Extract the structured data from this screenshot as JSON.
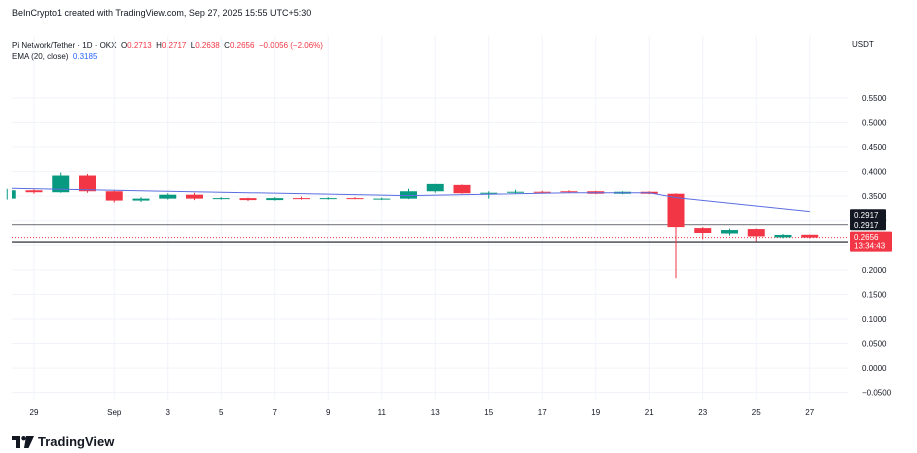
{
  "header": {
    "credit": "BeInCrypto1 created with TradingView.com, Sep 27, 2025 15:55 UTC+5:30"
  },
  "legend": {
    "symbol": "Pi Network/Tether · 1D · OKX",
    "o_label": "O",
    "o_value": "0.2713",
    "h_label": "H",
    "h_value": "0.2717",
    "l_label": "L",
    "l_value": "0.2638",
    "c_label": "C",
    "c_value": "0.2656",
    "change": "−0.0056 (−2.06%)",
    "ema_label": "EMA (20, close)",
    "ema_value": "0.3185"
  },
  "currency": "USDT",
  "brand": {
    "name": "TradingView"
  },
  "colors": {
    "up": "#089981",
    "down": "#f23645",
    "ema": "#5b6ee1",
    "grid": "#f0f3fa",
    "level": "#131722",
    "price_line": "#f23645"
  },
  "chart_data": {
    "type": "candlestick",
    "y_ticks": [
      "0.5500",
      "0.5000",
      "0.4500",
      "0.4000",
      "0.3500",
      "0.3000",
      "0.2500",
      "0.2000",
      "0.1500",
      "0.1000",
      "0.0500",
      "0.0000",
      "−0.0500"
    ],
    "y_tick_values": [
      0.55,
      0.5,
      0.45,
      0.4,
      0.35,
      0.3,
      0.25,
      0.2,
      0.15,
      0.1,
      0.05,
      0.0,
      -0.05
    ],
    "ylim": [
      -0.065,
      0.615
    ],
    "x_ticks": [
      {
        "label": "29",
        "day": 0
      },
      {
        "label": "Sep",
        "day": 3
      },
      {
        "label": "3",
        "day": 5
      },
      {
        "label": "5",
        "day": 7
      },
      {
        "label": "7",
        "day": 9
      },
      {
        "label": "9",
        "day": 11
      },
      {
        "label": "11",
        "day": 13
      },
      {
        "label": "13",
        "day": 15
      },
      {
        "label": "15",
        "day": 17
      },
      {
        "label": "17",
        "day": 19
      },
      {
        "label": "19",
        "day": 21
      },
      {
        "label": "21",
        "day": 23
      },
      {
        "label": "23",
        "day": 25
      },
      {
        "label": "25",
        "day": 27
      },
      {
        "label": "27",
        "day": 29
      }
    ],
    "candles": [
      {
        "d": -1,
        "o": 0.345,
        "h": 0.365,
        "l": 0.343,
        "c": 0.362
      },
      {
        "d": 0,
        "o": 0.362,
        "h": 0.364,
        "l": 0.355,
        "c": 0.358
      },
      {
        "d": 1,
        "o": 0.358,
        "h": 0.398,
        "l": 0.357,
        "c": 0.392
      },
      {
        "d": 2,
        "o": 0.392,
        "h": 0.395,
        "l": 0.357,
        "c": 0.36
      },
      {
        "d": 3,
        "o": 0.36,
        "h": 0.362,
        "l": 0.337,
        "c": 0.341
      },
      {
        "d": 4,
        "o": 0.341,
        "h": 0.348,
        "l": 0.338,
        "c": 0.345
      },
      {
        "d": 5,
        "o": 0.345,
        "h": 0.356,
        "l": 0.343,
        "c": 0.353
      },
      {
        "d": 6,
        "o": 0.353,
        "h": 0.357,
        "l": 0.342,
        "c": 0.345
      },
      {
        "d": 7,
        "o": 0.345,
        "h": 0.348,
        "l": 0.343,
        "c": 0.346
      },
      {
        "d": 8,
        "o": 0.346,
        "h": 0.347,
        "l": 0.34,
        "c": 0.342
      },
      {
        "d": 9,
        "o": 0.342,
        "h": 0.348,
        "l": 0.341,
        "c": 0.346
      },
      {
        "d": 10,
        "o": 0.346,
        "h": 0.349,
        "l": 0.343,
        "c": 0.345
      },
      {
        "d": 11,
        "o": 0.345,
        "h": 0.348,
        "l": 0.343,
        "c": 0.346
      },
      {
        "d": 12,
        "o": 0.346,
        "h": 0.348,
        "l": 0.344,
        "c": 0.344
      },
      {
        "d": 13,
        "o": 0.344,
        "h": 0.347,
        "l": 0.342,
        "c": 0.345
      },
      {
        "d": 14,
        "o": 0.345,
        "h": 0.365,
        "l": 0.344,
        "c": 0.36
      },
      {
        "d": 15,
        "o": 0.36,
        "h": 0.375,
        "l": 0.357,
        "c": 0.375
      },
      {
        "d": 16,
        "o": 0.373,
        "h": 0.374,
        "l": 0.355,
        "c": 0.356
      },
      {
        "d": 17,
        "o": 0.356,
        "h": 0.36,
        "l": 0.345,
        "c": 0.357
      },
      {
        "d": 18,
        "o": 0.357,
        "h": 0.363,
        "l": 0.355,
        "c": 0.359
      },
      {
        "d": 19,
        "o": 0.359,
        "h": 0.361,
        "l": 0.356,
        "c": 0.358
      },
      {
        "d": 20,
        "o": 0.36,
        "h": 0.362,
        "l": 0.356,
        "c": 0.359
      },
      {
        "d": 21,
        "o": 0.36,
        "h": 0.361,
        "l": 0.354,
        "c": 0.355
      },
      {
        "d": 22,
        "o": 0.355,
        "h": 0.36,
        "l": 0.354,
        "c": 0.359
      },
      {
        "d": 23,
        "o": 0.359,
        "h": 0.36,
        "l": 0.354,
        "c": 0.355
      },
      {
        "d": 24,
        "o": 0.355,
        "h": 0.356,
        "l": 0.183,
        "c": 0.287
      },
      {
        "d": 25,
        "o": 0.285,
        "h": 0.287,
        "l": 0.262,
        "c": 0.275
      },
      {
        "d": 26,
        "o": 0.274,
        "h": 0.284,
        "l": 0.27,
        "c": 0.281
      },
      {
        "d": 27,
        "o": 0.283,
        "h": 0.284,
        "l": 0.258,
        "c": 0.268
      },
      {
        "d": 28,
        "o": 0.266,
        "h": 0.273,
        "l": 0.264,
        "c": 0.271
      },
      {
        "d": 29,
        "o": 0.2713,
        "h": 0.2717,
        "l": 0.2638,
        "c": 0.2656
      }
    ],
    "ema": [
      {
        "d": -1,
        "v": 0.366
      },
      {
        "d": 14,
        "v": 0.351
      },
      {
        "d": 20,
        "v": 0.357
      },
      {
        "d": 23,
        "v": 0.357
      },
      {
        "d": 24,
        "v": 0.347
      },
      {
        "d": 29,
        "v": 0.3185
      }
    ],
    "levels": [
      {
        "value": 0.2917,
        "label": "0.2917"
      },
      {
        "value": 0.2565,
        "label": "0.2565"
      }
    ],
    "level_badges": [
      {
        "value": 0.2917,
        "label": "0.2917",
        "offset": -10
      },
      {
        "value": 0.2917,
        "label": "0.2917",
        "offset": 0
      },
      {
        "value": 0.2565,
        "label": "0.2565",
        "offset": 0
      }
    ],
    "last_price": {
      "value": 0.2656,
      "label": "0.2656",
      "countdown": "13:34:43"
    }
  }
}
